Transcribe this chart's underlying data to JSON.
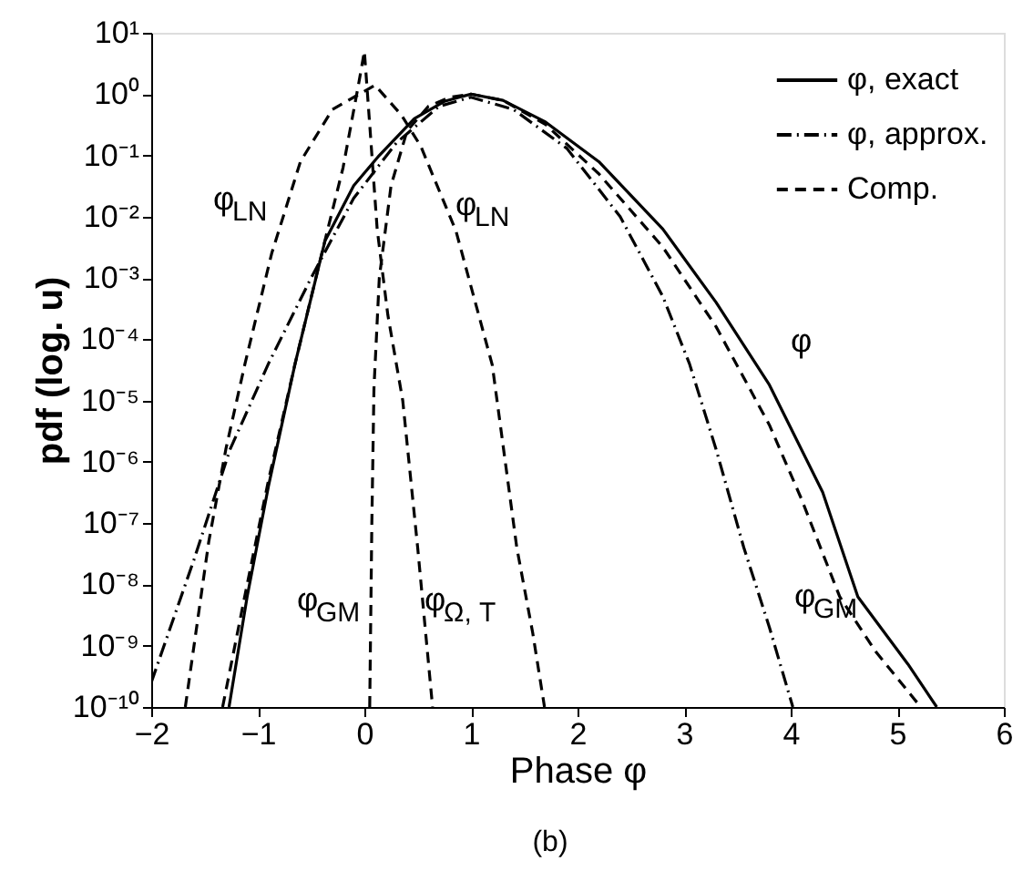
{
  "chart_data": {
    "type": "line",
    "xlabel": "Phase φ",
    "ylabel": "pdf (log. u)",
    "log": "y",
    "xlim": [
      -2,
      6
    ],
    "xticks": [
      -2,
      -1,
      0,
      1,
      2,
      3,
      4,
      5,
      6
    ],
    "ylim": [
      1e-10,
      10
    ],
    "yticks": [
      {
        "value": 1e-10,
        "label": "10⁻¹⁰"
      },
      {
        "value": 1e-09,
        "label": "10⁻⁹"
      },
      {
        "value": 1e-08,
        "label": "10⁻⁸"
      },
      {
        "value": 1e-07,
        "label": "10⁻⁷"
      },
      {
        "value": 1e-06,
        "label": "10⁻⁶"
      },
      {
        "value": 1e-05,
        "label": "10⁻⁵"
      },
      {
        "value": 0.0001,
        "label": "10⁻⁴"
      },
      {
        "value": 0.001,
        "label": "10⁻³"
      },
      {
        "value": 0.01,
        "label": "10⁻²"
      },
      {
        "value": 0.1,
        "label": "10⁻¹"
      },
      {
        "value": 1,
        "label": "10⁰"
      },
      {
        "value": 10,
        "label": "10¹"
      }
    ],
    "grid": false,
    "legend": "top right",
    "marker": "none",
    "series": [
      {
        "name": "φ, exact",
        "color": "#000000",
        "line_style": "solid",
        "x": [
          -1.27,
          -1.1,
          -0.9,
          -0.65,
          -0.37,
          -0.1,
          0.14,
          0.47,
          0.75,
          1.0,
          1.3,
          1.7,
          2.2,
          2.8,
          3.3,
          3.8,
          4.3,
          4.63,
          5.1,
          5.37
        ],
        "values": [
          1e-10,
          6.3e-09,
          4e-07,
          4e-05,
          0.004,
          0.032,
          0.1,
          0.4,
          0.76,
          1.0,
          0.79,
          0.35,
          0.079,
          0.0063,
          0.0004,
          1.8e-05,
          3.2e-07,
          6.3e-09,
          5e-10,
          1e-10
        ]
      },
      {
        "name": "φ, approx.",
        "color": "#000000",
        "line_style": "dashdot",
        "x": [
          -2,
          -1.6,
          -1.26,
          -0.9,
          -0.5,
          -0.1,
          0.3,
          0.7,
          1.0,
          1.4,
          1.9,
          2.4,
          2.8,
          3.05,
          3.3,
          3.56,
          3.8,
          4.02
        ],
        "values": [
          2.5e-10,
          2.5e-08,
          1.6e-06,
          4e-05,
          0.001,
          0.02,
          0.16,
          0.63,
          0.89,
          0.56,
          0.13,
          0.01,
          0.0005,
          4e-05,
          1.6e-06,
          4e-08,
          2e-09,
          1e-10
        ]
      },
      {
        "name": "Comp.",
        "color": "#000000",
        "line_style": "dashed",
        "x": [
          -1.68,
          -1.46,
          -1.3,
          -1.12,
          -0.87,
          -0.6,
          -0.3,
          0.1,
          0.35,
          0.53,
          0.86,
          1.2,
          1.43,
          1.58,
          1.69
        ],
        "values": [
          1e-10,
          5e-08,
          1.6e-06,
          4e-05,
          0.0025,
          0.079,
          0.56,
          1.4,
          0.45,
          0.14,
          0.0058,
          3.8e-05,
          4e-08,
          1.6e-09,
          1e-10
        ]
      },
      {
        "color": "#000000",
        "line_style": "dashed",
        "x": [
          -1.33,
          -1.1,
          -0.9,
          -0.65,
          -0.4,
          -0.2,
          -0.05,
          0,
          0.05,
          0.12,
          0.22,
          0.36,
          0.5,
          0.64
        ],
        "values": [
          1e-10,
          1e-08,
          5e-07,
          4e-05,
          0.0025,
          0.063,
          1.6,
          5,
          0.32,
          0.0063,
          0.00025,
          1e-05,
          4e-08,
          1e-10
        ]
      },
      {
        "color": "#000000",
        "line_style": "dashed",
        "x": [
          0.05,
          0.07,
          0.09,
          0.14,
          0.25,
          0.4,
          0.6,
          0.8,
          1.0,
          1.3,
          1.7,
          2.2,
          2.8,
          3.3,
          3.8,
          4.1,
          4.46,
          4.8,
          5.22
        ],
        "values": [
          1e-10,
          1e-07,
          1.6e-05,
          0.001,
          0.032,
          0.25,
          0.63,
          0.89,
          1.0,
          0.79,
          0.32,
          0.05,
          0.0032,
          0.00016,
          4e-06,
          2.5e-07,
          6.3e-09,
          7.9e-10,
          1e-10
        ]
      }
    ],
    "annotations": [
      "φ$_{LN}$",
      "φ$_{LN}$",
      "φ",
      "φ$_{GM}$",
      "φ$_{Ω, T}$",
      "φ$_{GM}$",
      "(b)"
    ]
  }
}
